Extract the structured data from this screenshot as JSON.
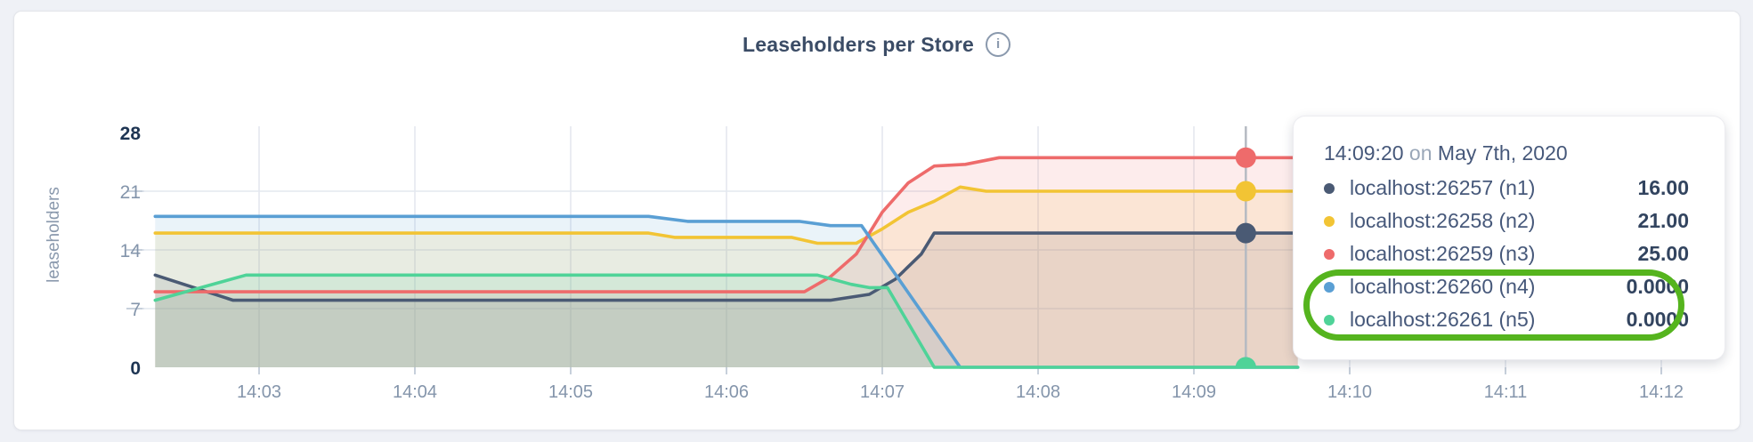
{
  "header": {
    "title": "Leaseholders per Store",
    "info_icon_glyph": "i"
  },
  "chart_data": {
    "type": "area",
    "title": "Leaseholders per Store",
    "xlabel": "",
    "ylabel": "leaseholders",
    "ylim": [
      0,
      28
    ],
    "yticks": [
      0,
      7,
      14,
      21,
      28
    ],
    "bold_yticks": [
      0,
      28
    ],
    "xticks": [
      "14:03",
      "14:04",
      "14:05",
      "14:06",
      "14:07",
      "14:08",
      "14:09",
      "14:10",
      "14:11",
      "14:12"
    ],
    "grid": "on",
    "legend_position": "tooltip",
    "series": [
      {
        "id": "n1",
        "name": "localhost:26257 (n1)",
        "color": "#4A5A74",
        "points": [
          [
            "14:02:20",
            11
          ],
          [
            "14:02:50",
            8
          ],
          [
            "14:06:40",
            8
          ],
          [
            "14:06:55",
            8.7
          ],
          [
            "14:07:05",
            10.5
          ],
          [
            "14:07:15",
            13.5
          ],
          [
            "14:07:20",
            16
          ],
          [
            "14:09:40",
            16
          ]
        ]
      },
      {
        "id": "n2",
        "name": "localhost:26258 (n2)",
        "color": "#F2C434",
        "points": [
          [
            "14:02:20",
            16
          ],
          [
            "14:05:30",
            16
          ],
          [
            "14:05:40",
            15.5
          ],
          [
            "14:06:25",
            15.5
          ],
          [
            "14:06:35",
            14.8
          ],
          [
            "14:06:50",
            14.8
          ],
          [
            "14:07:00",
            16.5
          ],
          [
            "14:07:10",
            18.5
          ],
          [
            "14:07:20",
            19.8
          ],
          [
            "14:07:30",
            21.5
          ],
          [
            "14:07:40",
            21
          ],
          [
            "14:09:40",
            21
          ]
        ]
      },
      {
        "id": "n3",
        "name": "localhost:26259 (n3)",
        "color": "#EE6B6B",
        "points": [
          [
            "14:02:20",
            9
          ],
          [
            "14:06:30",
            9
          ],
          [
            "14:06:40",
            10.8
          ],
          [
            "14:06:50",
            13.5
          ],
          [
            "14:07:00",
            18.5
          ],
          [
            "14:07:10",
            22
          ],
          [
            "14:07:20",
            24
          ],
          [
            "14:07:32",
            24.2
          ],
          [
            "14:07:45",
            25
          ],
          [
            "14:09:40",
            25
          ]
        ]
      },
      {
        "id": "n4",
        "name": "localhost:26260 (n4)",
        "color": "#5A9FD4",
        "points": [
          [
            "14:02:20",
            18
          ],
          [
            "14:05:30",
            18
          ],
          [
            "14:05:45",
            17.4
          ],
          [
            "14:06:28",
            17.4
          ],
          [
            "14:06:40",
            16.9
          ],
          [
            "14:06:52",
            16.9
          ],
          [
            "14:07:30",
            0
          ],
          [
            "14:09:40",
            0
          ]
        ]
      },
      {
        "id": "n5",
        "name": "localhost:26261 (n5)",
        "color": "#4FD398",
        "points": [
          [
            "14:02:20",
            8
          ],
          [
            "14:02:55",
            11
          ],
          [
            "14:06:35",
            11
          ],
          [
            "14:06:48",
            9.9
          ],
          [
            "14:06:55",
            9.5
          ],
          [
            "14:07:02",
            9.5
          ],
          [
            "14:07:20",
            0
          ],
          [
            "14:09:40",
            0
          ]
        ]
      }
    ],
    "hover": {
      "time": "14:09:20",
      "values": [
        16,
        21,
        25,
        0,
        0
      ]
    }
  },
  "tooltip": {
    "time": "14:09:20",
    "preposition": "on",
    "date": "May 7th, 2020",
    "rows": [
      {
        "label": "localhost:26257 (n1)",
        "value": "16.00",
        "color": "#4A5A74",
        "highlighted": false
      },
      {
        "label": "localhost:26258 (n2)",
        "value": "21.00",
        "color": "#F2C434",
        "highlighted": false
      },
      {
        "label": "localhost:26259 (n3)",
        "value": "25.00",
        "color": "#EE6B6B",
        "highlighted": false
      },
      {
        "label": "localhost:26260 (n4)",
        "value": "0.0000",
        "color": "#5A9FD4",
        "highlighted": true
      },
      {
        "label": "localhost:26261 (n5)",
        "value": "0.0000",
        "color": "#4FD398",
        "highlighted": true
      }
    ],
    "annotation_color": "#55B41E"
  }
}
